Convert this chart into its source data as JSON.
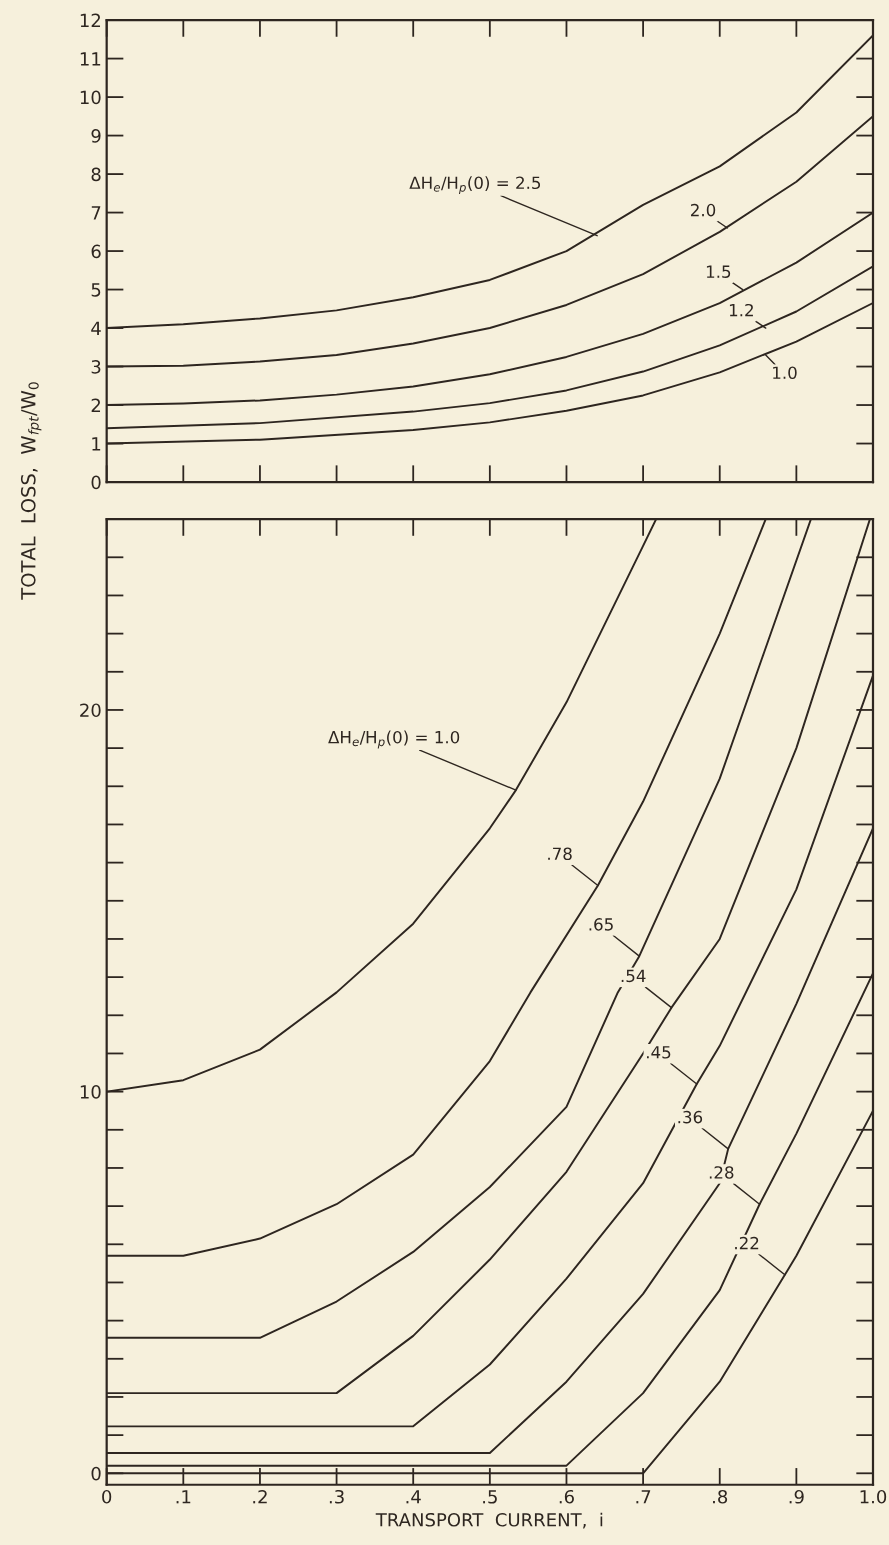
{
  "chart_data": [
    {
      "type": "line",
      "xlim": [
        0,
        1.0
      ],
      "ylim": [
        0,
        12
      ],
      "xticks": [
        {
          "value": 0,
          "label": null
        },
        {
          "value": 0.1,
          "label": null
        },
        {
          "value": 0.2,
          "label": null
        },
        {
          "value": 0.3,
          "label": null
        },
        {
          "value": 0.4,
          "label": null
        },
        {
          "value": 0.5,
          "label": null
        },
        {
          "value": 0.6,
          "label": null
        },
        {
          "value": 0.7,
          "label": null
        },
        {
          "value": 0.8,
          "label": null
        },
        {
          "value": 0.9,
          "label": null
        },
        {
          "value": 1.0,
          "label": null
        }
      ],
      "yticks": [
        0,
        1,
        2,
        3,
        4,
        5,
        6,
        7,
        8,
        9,
        10,
        11,
        12
      ],
      "tick_labels": "y",
      "series": [
        {
          "color": "#2e2620",
          "x": [
            0,
            0.1,
            0.2,
            0.3,
            0.4,
            0.5,
            0.6,
            0.7,
            0.8,
            0.9,
            1.0
          ],
          "values": [
            4.0,
            4.1,
            4.25,
            4.46,
            4.8,
            5.25,
            6.0,
            7.2,
            8.2,
            9.6,
            11.6
          ]
        },
        {
          "color": "#2e2620",
          "x": [
            0,
            0.1,
            0.2,
            0.3,
            0.4,
            0.5,
            0.6,
            0.7,
            0.8,
            0.9,
            1.0
          ],
          "values": [
            3.0,
            3.02,
            3.13,
            3.3,
            3.6,
            4.0,
            4.6,
            5.4,
            6.5,
            7.8,
            9.5
          ]
        },
        {
          "color": "#2e2620",
          "x": [
            0,
            0.1,
            0.2,
            0.3,
            0.4,
            0.5,
            0.6,
            0.7,
            0.8,
            0.9,
            1.0
          ],
          "values": [
            2.0,
            2.04,
            2.12,
            2.27,
            2.48,
            2.8,
            3.25,
            3.85,
            4.65,
            5.7,
            7.0
          ]
        },
        {
          "color": "#2e2620",
          "x": [
            0,
            0.2,
            0.4,
            0.5,
            0.6,
            0.7,
            0.8,
            0.9,
            1.0
          ],
          "values": [
            1.4,
            1.53,
            1.83,
            2.05,
            2.38,
            2.87,
            3.55,
            4.43,
            5.6
          ]
        },
        {
          "color": "#2e2620",
          "x": [
            0,
            0.2,
            0.4,
            0.5,
            0.6,
            0.7,
            0.8,
            0.9,
            1.0
          ],
          "values": [
            1.0,
            1.1,
            1.35,
            1.55,
            1.85,
            2.25,
            2.85,
            3.65,
            4.65
          ]
        }
      ],
      "annotations": [
        {
          "text": "ΔH$_{e}$/H$_{p}$(0) = 2.5",
          "x": 0.64,
          "y": 6.4
        },
        {
          "text": "2.0",
          "x": 0.81,
          "y": 6.6
        },
        {
          "text": "1.5",
          "x": 0.83,
          "y": 5.0
        },
        {
          "text": "1.2",
          "x": 0.86,
          "y": 4.0
        },
        {
          "text": "1.0",
          "x": 0.86,
          "y": 3.3
        }
      ]
    },
    {
      "type": "line",
      "xlim": [
        0,
        1.0
      ],
      "ylim": [
        -0.3,
        25
      ],
      "xticks": [
        {
          "value": 0,
          "label": "0"
        },
        {
          "value": 0.1,
          "label": ".1"
        },
        {
          "value": 0.2,
          "label": ".2"
        },
        {
          "value": 0.3,
          "label": ".3"
        },
        {
          "value": 0.4,
          "label": ".4"
        },
        {
          "value": 0.5,
          "label": ".5"
        },
        {
          "value": 0.6,
          "label": ".6"
        },
        {
          "value": 0.7,
          "label": ".7"
        },
        {
          "value": 0.8,
          "label": ".8"
        },
        {
          "value": 0.9,
          "label": ".9"
        },
        {
          "value": 1.0,
          "label": "1.0"
        }
      ],
      "yticks": [
        0,
        10,
        20
      ],
      "xlabel": "TRANSPORT  CURRENT,  i",
      "ylabel": "TOTAL  LOSS,  W$_{fpt}$/W$_{0}$",
      "series": [
        {
          "color": "#2e2620",
          "x": [
            0,
            0.1,
            0.2,
            0.3,
            0.4,
            0.5,
            0.534,
            0.6,
            0.7,
            0.717
          ],
          "values": [
            10.0,
            10.3,
            11.1,
            12.6,
            14.4,
            16.9,
            17.9,
            20.2,
            24.3,
            25
          ]
        },
        {
          "color": "#2e2620",
          "x": [
            0,
            0.1,
            0.2,
            0.3,
            0.4,
            0.5,
            0.553,
            0.641,
            0.7,
            0.8,
            0.86
          ],
          "values": [
            5.7,
            5.7,
            6.15,
            7.05,
            8.35,
            10.8,
            12.6,
            15.4,
            17.6,
            22.0,
            25
          ]
        },
        {
          "color": "#2e2620",
          "x": [
            0,
            0.2,
            0.3,
            0.4,
            0.5,
            0.6,
            0.667,
            0.695,
            0.8,
            0.919
          ],
          "values": [
            3.55,
            3.55,
            4.5,
            5.8,
            7.5,
            9.6,
            12.6,
            13.55,
            18.2,
            25
          ]
        },
        {
          "color": "#2e2620",
          "x": [
            0,
            0.3,
            0.4,
            0.5,
            0.6,
            0.7,
            0.737,
            0.8,
            0.9,
            0.996
          ],
          "values": [
            2.1,
            2.1,
            3.6,
            5.6,
            7.9,
            11.0,
            12.2,
            14.0,
            19.0,
            25
          ]
        },
        {
          "color": "#2e2620",
          "x": [
            0,
            0.4,
            0.5,
            0.6,
            0.7,
            0.77,
            0.8,
            0.9,
            1.0
          ],
          "values": [
            1.23,
            1.23,
            2.85,
            5.1,
            7.6,
            10.2,
            11.2,
            15.3,
            20.9
          ]
        },
        {
          "color": "#2e2620",
          "x": [
            0,
            0.5,
            0.6,
            0.7,
            0.8,
            0.811,
            0.9,
            1.0
          ],
          "values": [
            0.53,
            0.53,
            2.4,
            4.7,
            7.6,
            8.5,
            12.3,
            16.9
          ]
        },
        {
          "color": "#2e2620",
          "x": [
            0,
            0.6,
            0.7,
            0.8,
            0.852,
            0.9,
            1.0
          ],
          "values": [
            0.2,
            0.2,
            2.1,
            4.8,
            7.05,
            8.9,
            13.1
          ]
        },
        {
          "color": "#2e2620",
          "x": [
            0,
            0.7,
            0.8,
            0.885,
            0.9,
            1.0
          ],
          "values": [
            0.0,
            0.0,
            2.4,
            5.2,
            5.7,
            9.5
          ]
        }
      ],
      "annotations": [
        {
          "text": "ΔH$_{e}$/H$_{p}$(0) = 1.0",
          "x": 0.534,
          "y": 17.9
        },
        {
          "text": ".78",
          "x": 0.641,
          "y": 15.4
        },
        {
          "text": ".65",
          "x": 0.695,
          "y": 13.55
        },
        {
          "text": ".54",
          "x": 0.737,
          "y": 12.2
        },
        {
          "text": ".45",
          "x": 0.77,
          "y": 10.2
        },
        {
          "text": ".36",
          "x": 0.811,
          "y": 8.5
        },
        {
          "text": ".28",
          "x": 0.852,
          "y": 7.05
        },
        {
          "text": ".22",
          "x": 0.885,
          "y": 5.2
        }
      ]
    }
  ]
}
